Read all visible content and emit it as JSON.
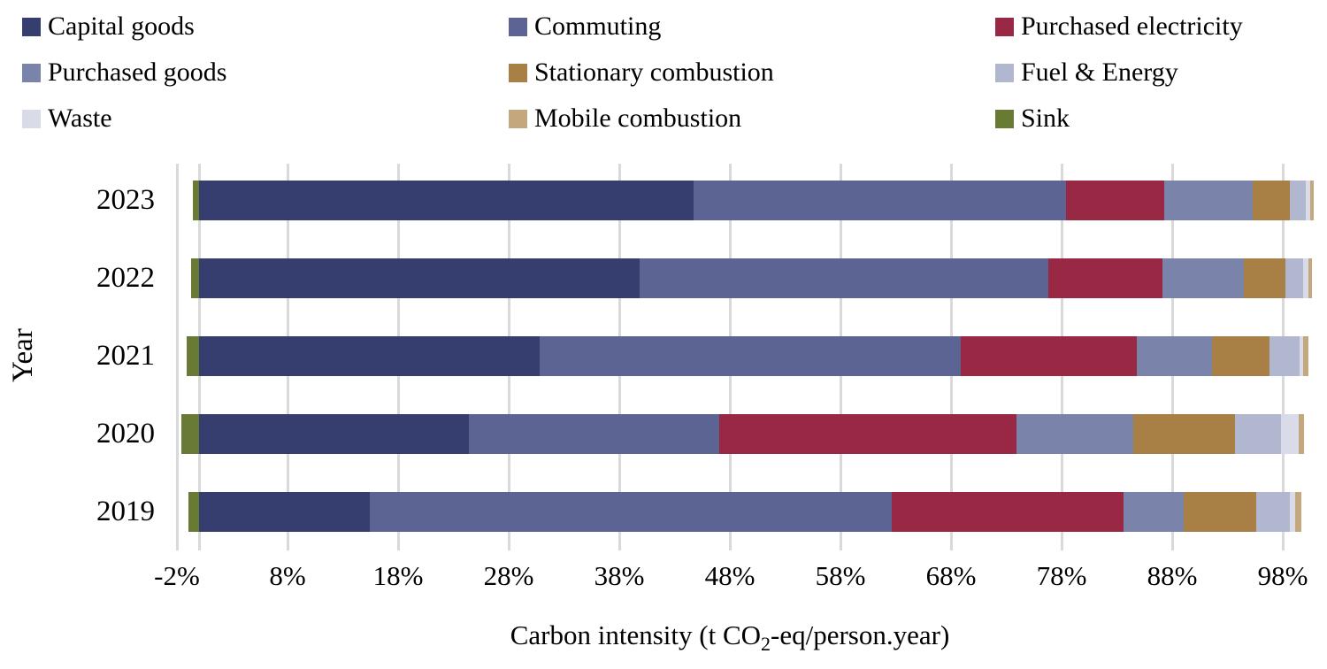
{
  "legend": [
    {
      "label": "Capital goods",
      "color": "#353e6f"
    },
    {
      "label": "Commuting",
      "color": "#5b6492"
    },
    {
      "label": "Purchased electricity",
      "color": "#992845"
    },
    {
      "label": "Purchased goods",
      "color": "#7a84aa"
    },
    {
      "label": "Stationary combustion",
      "color": "#a87f44"
    },
    {
      "label": "Fuel & Energy",
      "color": "#b0b7cf"
    },
    {
      "label": "Waste",
      "color": "#d9dce8"
    },
    {
      "label": "Mobile combustion",
      "color": "#c4a77d"
    },
    {
      "label": "Sink",
      "color": "#687a33"
    }
  ],
  "chart_data": {
    "type": "bar",
    "orientation": "horizontal",
    "stacked": true,
    "title": "",
    "xlabel": "Carbon intensity (t CO2-eq/person.year)",
    "xlabel_parts": {
      "pre": "Carbon intensity (t CO",
      "sub": "2",
      "post": "-eq/person.year)"
    },
    "ylabel": "Year",
    "categories": [
      "2023",
      "2022",
      "2021",
      "2020",
      "2019"
    ],
    "x_ticks": [
      "-2%",
      "8%",
      "18%",
      "28%",
      "38%",
      "48%",
      "58%",
      "68%",
      "78%",
      "88%",
      "98%"
    ],
    "xlim": [
      -2,
      98
    ],
    "grid": true,
    "gridline_color": "#d9d9d9",
    "legend_position": "top",
    "series": [
      {
        "name": "Sink",
        "color": "#687a33",
        "values": [
          -0.6,
          -0.7,
          -1.1,
          -1.6,
          -1.0
        ]
      },
      {
        "name": "Capital goods",
        "color": "#353e6f",
        "values": [
          44.7,
          39.8,
          30.8,
          24.4,
          15.4
        ]
      },
      {
        "name": "Commuting",
        "color": "#5b6492",
        "values": [
          33.7,
          37.0,
          38.1,
          22.6,
          47.2
        ]
      },
      {
        "name": "Purchased electricity",
        "color": "#992845",
        "values": [
          8.9,
          10.3,
          15.9,
          26.9,
          21.0
        ]
      },
      {
        "name": "Purchased goods",
        "color": "#7a84aa",
        "values": [
          8.0,
          7.4,
          6.8,
          10.6,
          5.4
        ]
      },
      {
        "name": "Stationary combustion",
        "color": "#a87f44",
        "values": [
          3.3,
          3.7,
          5.2,
          9.2,
          6.6
        ]
      },
      {
        "name": "Fuel & Energy",
        "color": "#b0b7cf",
        "values": [
          1.5,
          1.6,
          2.7,
          4.1,
          3.0
        ]
      },
      {
        "name": "Waste",
        "color": "#d9dce8",
        "values": [
          0.4,
          0.5,
          0.3,
          1.6,
          0.5
        ]
      },
      {
        "name": "Mobile combustion",
        "color": "#c4a77d",
        "values": [
          0.3,
          0.3,
          0.5,
          0.5,
          0.6
        ]
      }
    ]
  }
}
